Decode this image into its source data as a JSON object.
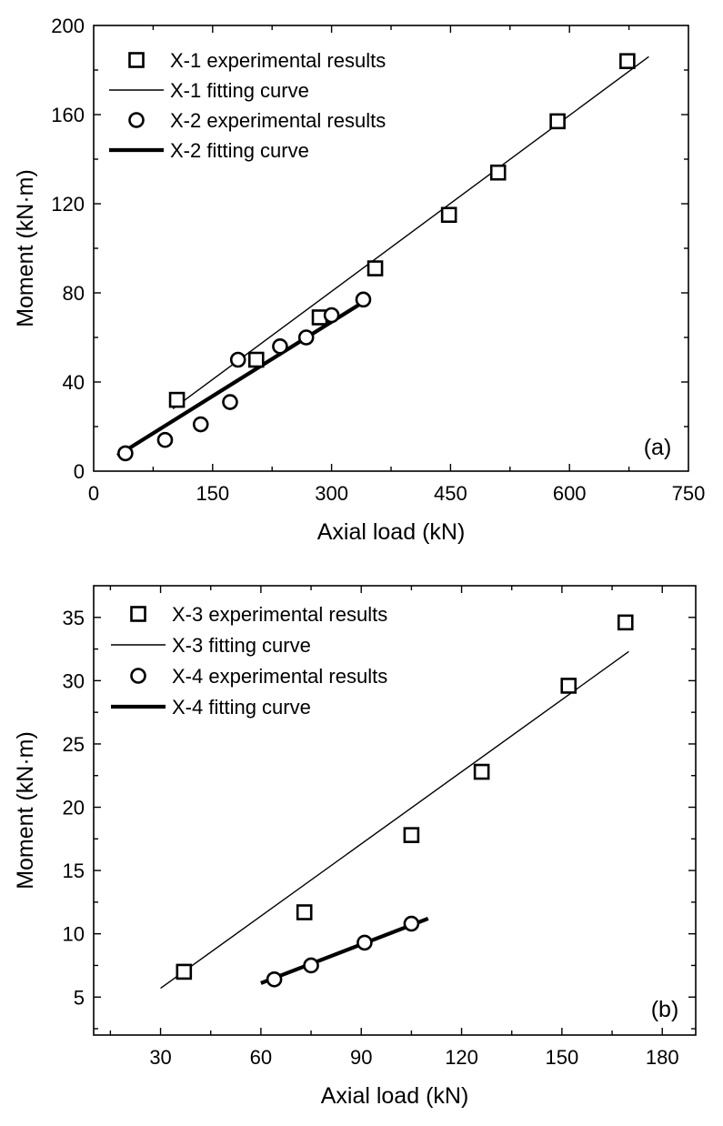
{
  "chart_data": [
    {
      "type": "scatter",
      "panel_label": "(a)",
      "xlabel": "Axial load  (kN)",
      "ylabel": "Moment (kN·m)",
      "xlim": [
        0,
        750
      ],
      "ylim": [
        0,
        200
      ],
      "xticks": [
        0,
        150,
        300,
        450,
        600,
        750
      ],
      "yticks": [
        0,
        40,
        80,
        120,
        160,
        200
      ],
      "series": [
        {
          "name": "X-1 experimental results",
          "kind": "points",
          "marker": "square",
          "points": [
            [
              105,
              32
            ],
            [
              205,
              50
            ],
            [
              285,
              69
            ],
            [
              355,
              91
            ],
            [
              448,
              115
            ],
            [
              510,
              134
            ],
            [
              585,
              157
            ],
            [
              673,
              184
            ]
          ]
        },
        {
          "name": "X-1 fitting curve",
          "kind": "line",
          "width": "thin",
          "points": [
            [
              100,
              28
            ],
            [
              700,
              186
            ]
          ]
        },
        {
          "name": "X-2 experimental results",
          "kind": "points",
          "marker": "circle",
          "points": [
            [
              40,
              8
            ],
            [
              90,
              14
            ],
            [
              135,
              21
            ],
            [
              172,
              31
            ],
            [
              182,
              50
            ],
            [
              235,
              56
            ],
            [
              268,
              60
            ],
            [
              300,
              70
            ],
            [
              340,
              77
            ]
          ]
        },
        {
          "name": "X-2 fitting curve",
          "kind": "line",
          "width": "thick",
          "points": [
            [
              30,
              7
            ],
            [
              345,
              77
            ]
          ]
        }
      ]
    },
    {
      "type": "scatter",
      "panel_label": "(b)",
      "xlabel": "Axial load (kN)",
      "ylabel": "Moment (kN·m)",
      "xlim": [
        10,
        190
      ],
      "ylim": [
        2,
        37.5
      ],
      "xticks": [
        30,
        60,
        90,
        120,
        150,
        180
      ],
      "yticks": [
        5,
        10,
        15,
        20,
        25,
        30,
        35
      ],
      "series": [
        {
          "name": "X-3 experimental results",
          "kind": "points",
          "marker": "square",
          "points": [
            [
              37,
              7.0
            ],
            [
              73,
              11.7
            ],
            [
              105,
              17.8
            ],
            [
              126,
              22.8
            ],
            [
              152,
              29.6
            ],
            [
              169,
              34.6
            ]
          ]
        },
        {
          "name": "X-3 fitting curve",
          "kind": "line",
          "width": "thin",
          "points": [
            [
              30,
              5.7
            ],
            [
              170,
              32.3
            ]
          ]
        },
        {
          "name": "X-4 experimental results",
          "kind": "points",
          "marker": "circle",
          "points": [
            [
              64,
              6.4
            ],
            [
              75,
              7.5
            ],
            [
              91,
              9.3
            ],
            [
              105,
              10.8
            ]
          ]
        },
        {
          "name": "X-4 fitting curve",
          "kind": "line",
          "width": "thick",
          "points": [
            [
              60,
              6.1
            ],
            [
              110,
              11.2
            ]
          ]
        }
      ]
    }
  ]
}
